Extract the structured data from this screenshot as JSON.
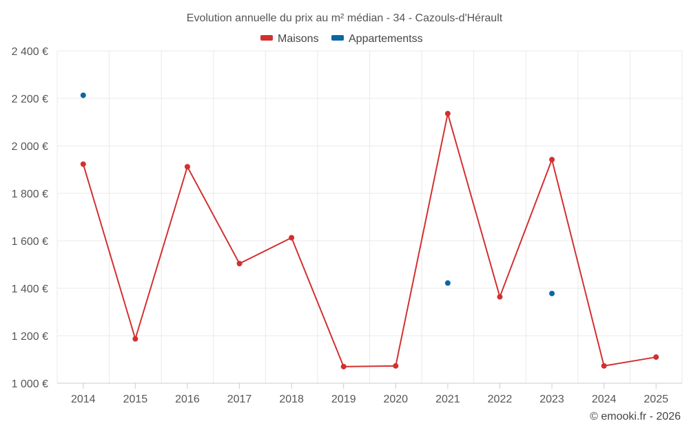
{
  "chart_data": {
    "type": "line",
    "title": "Evolution annuelle du prix au m² médian - 34 - Cazouls-d'Hérault",
    "categories": [
      "2014",
      "2015",
      "2016",
      "2017",
      "2018",
      "2019",
      "2020",
      "2021",
      "2022",
      "2023",
      "2024",
      "2025"
    ],
    "series": [
      {
        "name": "Maisons",
        "color": "#d32f2f",
        "values": [
          1923,
          1187,
          1912,
          1504,
          1613,
          1070,
          1073,
          2136,
          1364,
          1942,
          1073,
          1110
        ],
        "connected": true
      },
      {
        "name": "Appartementss",
        "color": "#0868a5",
        "values": [
          2213,
          null,
          null,
          null,
          null,
          null,
          null,
          1422,
          null,
          1378,
          null,
          null
        ],
        "connected": false
      }
    ],
    "ylim": [
      1000,
      2400
    ],
    "yticks": [
      1000,
      1200,
      1400,
      1600,
      1800,
      2000,
      2200,
      2400
    ],
    "ytick_labels": [
      "1 000 €",
      "1 200 €",
      "1 400 €",
      "1 600 €",
      "1 800 €",
      "2 000 €",
      "2 200 €",
      "2 400 €"
    ],
    "xlabel": "",
    "ylabel": "",
    "grid": true,
    "legend_position": "top-center"
  },
  "credit": "© emooki.fr - 2026"
}
